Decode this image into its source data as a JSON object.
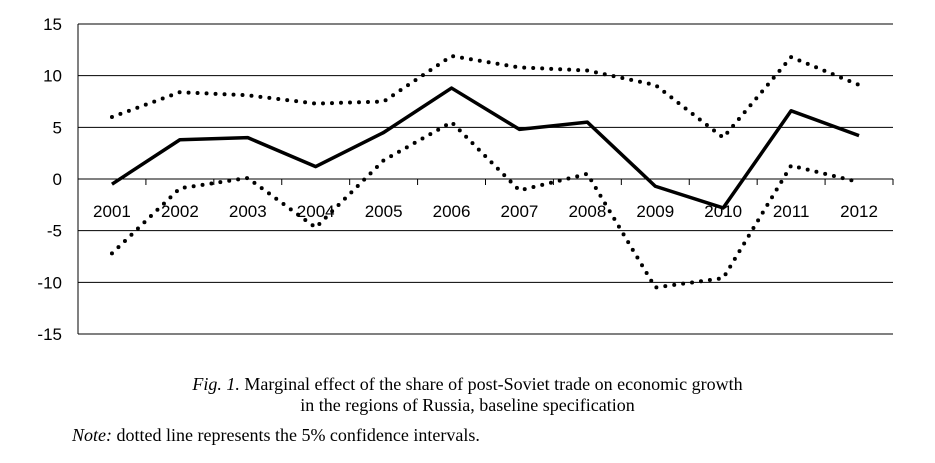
{
  "chart_data": {
    "type": "line",
    "categories": [
      "2001",
      "2002",
      "2003",
      "2004",
      "2005",
      "2006",
      "2007",
      "2008",
      "2009",
      "2010",
      "2011",
      "2012"
    ],
    "ylim": [
      -15,
      15
    ],
    "yticks": [
      15,
      10,
      5,
      0,
      -5,
      -10,
      -15
    ],
    "ytick_labels": [
      "15",
      "10",
      "5",
      "0",
      "-5",
      "-10",
      "-15"
    ],
    "grid": true,
    "series": [
      {
        "style": "solid",
        "values": [
          -0.5,
          3.8,
          4.0,
          1.2,
          4.5,
          8.8,
          4.8,
          5.5,
          -0.7,
          -2.8,
          6.6,
          4.2
        ]
      },
      {
        "style": "dotted",
        "values": [
          6.0,
          8.4,
          8.1,
          7.3,
          7.5,
          11.9,
          10.8,
          10.5,
          9.1,
          4.0,
          11.8,
          9.1
        ]
      },
      {
        "style": "dotted",
        "values": [
          -7.2,
          -0.9,
          0.1,
          -4.7,
          1.8,
          5.5,
          -1.1,
          0.5,
          -10.5,
          -9.6,
          1.3,
          -0.3
        ]
      }
    ],
    "colors": {
      "line": "#000000",
      "grid": "#000000"
    }
  },
  "caption": {
    "fig_label": "Fig. 1.",
    "line1_rest": " Marginal effect of the share of post-Soviet trade on economic growth",
    "line2": "in the regions of Russia, baseline specification"
  },
  "note": {
    "label": "Note:",
    "text": " dotted line represents the 5% confidence intervals."
  }
}
